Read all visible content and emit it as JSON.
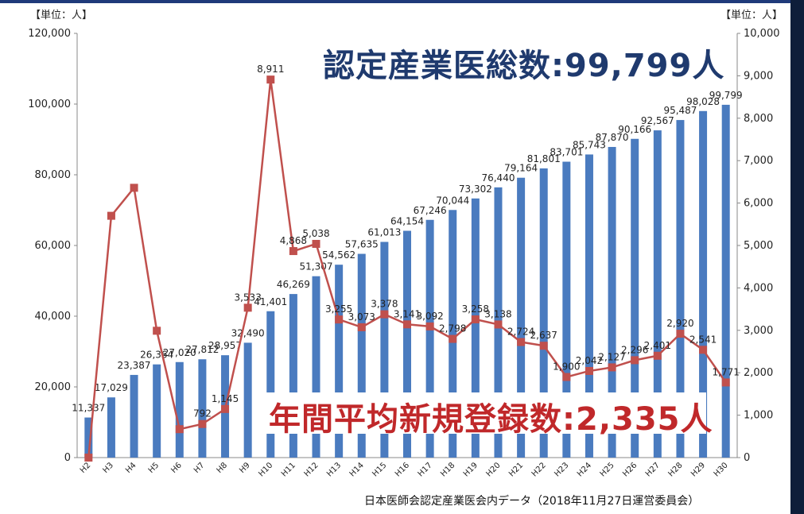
{
  "page": {
    "unit_left": "【単位：人】",
    "unit_right": "【単位：人】",
    "title": "認定産業医総数:99,799人",
    "subtitle": "年間平均新規登録数:2,335人",
    "source": "日本医師会認定産業医会内データ（2018年11月27日運営委員会）"
  },
  "colors": {
    "bar": "#4a7bbf",
    "line": "#c0504d",
    "title": "#1f3a6e",
    "subtitle": "#c0282a"
  },
  "chart_data": {
    "type": "bar",
    "categories": [
      "H2",
      "H3",
      "H4",
      "H5",
      "H6",
      "H7",
      "H8",
      "H9",
      "H10",
      "H11",
      "H12",
      "H13",
      "H14",
      "H15",
      "H16",
      "H17",
      "H18",
      "H19",
      "H20",
      "H21",
      "H22",
      "H23",
      "H24",
      "H25",
      "H26",
      "H27",
      "H28",
      "H29",
      "H30"
    ],
    "series": [
      {
        "type": "bar",
        "axis": "left",
        "values": [
          11337,
          17029,
          23387,
          26364,
          27020,
          27812,
          28957,
          32490,
          41401,
          46269,
          51307,
          54562,
          57635,
          61013,
          64154,
          67246,
          70044,
          73302,
          76440,
          79164,
          81801,
          83701,
          85743,
          87870,
          90166,
          92567,
          95487,
          98028,
          99799
        ],
        "labels": [
          "11,337",
          "17,029",
          "23,387",
          "26,364",
          "27,020",
          "27,812",
          "28,957",
          "32,490",
          "41,401",
          "46,269",
          "51,307",
          "54,562",
          "57,635",
          "61,013",
          "64,154",
          "67,246",
          "70,044",
          "73,302",
          "76,440",
          "79,164",
          "81,801",
          "83,701",
          "85,743",
          "87,870",
          "90,166",
          "92,567",
          "95,487",
          "98,028",
          "99,799"
        ]
      },
      {
        "type": "line",
        "axis": "right",
        "values": [
          0,
          5700,
          6360,
          2990,
          670,
          792,
          1145,
          3533,
          8911,
          4868,
          5038,
          3255,
          3073,
          3378,
          3141,
          3092,
          2798,
          3258,
          3138,
          2724,
          2637,
          1900,
          2042,
          2127,
          2296,
          2401,
          2920,
          2541,
          1771
        ],
        "labels": [
          "",
          "",
          "",
          "",
          "",
          "792",
          "1,145",
          "3,533",
          "8,911",
          "4,868",
          "5,038",
          "3,255",
          "3,073",
          "3,378",
          "3,141",
          "3,092",
          "2,798",
          "3,258",
          "3,138",
          "2,724",
          "2,637",
          "1,900",
          "2,042",
          "2,127",
          "2,296",
          "2,401",
          "2,920",
          "2,541",
          "1,771"
        ]
      }
    ],
    "y_left": {
      "ylim": [
        0,
        120000
      ],
      "ticks": [
        "0",
        "20,000",
        "40,000",
        "60,000",
        "80,000",
        "100,000",
        "120,000"
      ]
    },
    "y_right": {
      "ylim": [
        0,
        10000
      ],
      "ticks": [
        "0",
        "1,000",
        "2,000",
        "3,000",
        "4,000",
        "5,000",
        "6,000",
        "7,000",
        "8,000",
        "9,000",
        "10,000"
      ]
    },
    "grid": false,
    "legend": "none"
  }
}
